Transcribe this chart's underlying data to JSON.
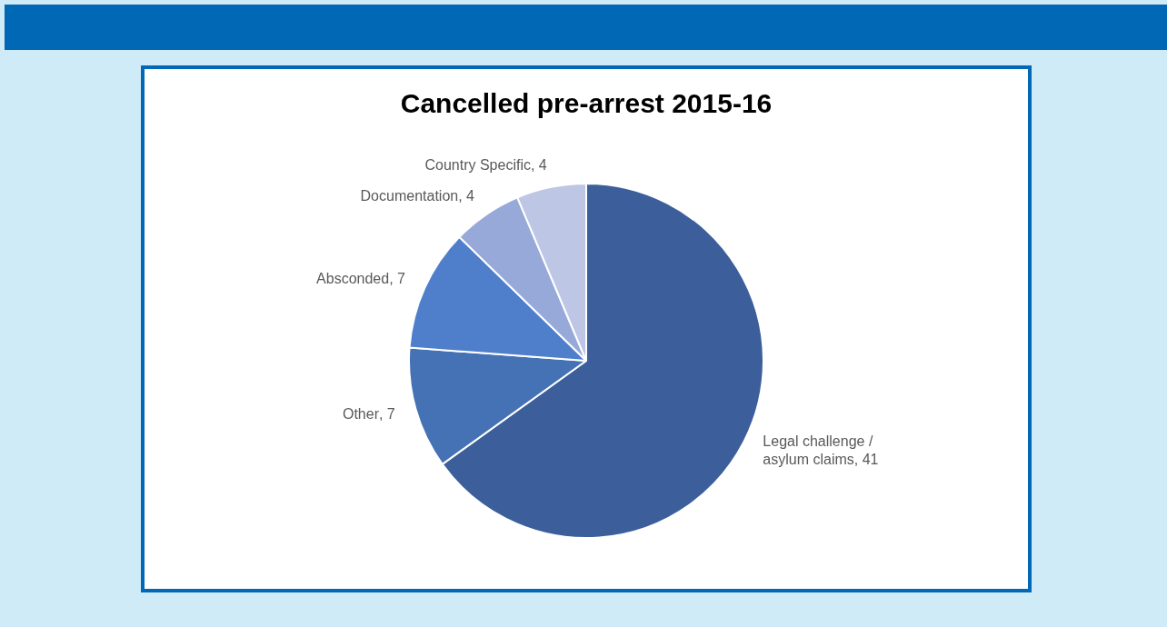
{
  "chart_data": {
    "type": "pie",
    "title": "Cancelled pre-arrest 2015-16",
    "categories": [
      "Legal challenge / asylum claims",
      "Other",
      "Absconded",
      "Documentation",
      "Country Specific"
    ],
    "values": [
      41,
      7,
      7,
      4,
      4
    ],
    "colors": [
      "#3c5f9c",
      "#4571b5",
      "#4f7fcb",
      "#97a9d8",
      "#bdc6e4"
    ],
    "value_labels": [
      ", 41",
      ", 7",
      ", 7",
      ", 4",
      ", 4"
    ],
    "legend": false
  }
}
